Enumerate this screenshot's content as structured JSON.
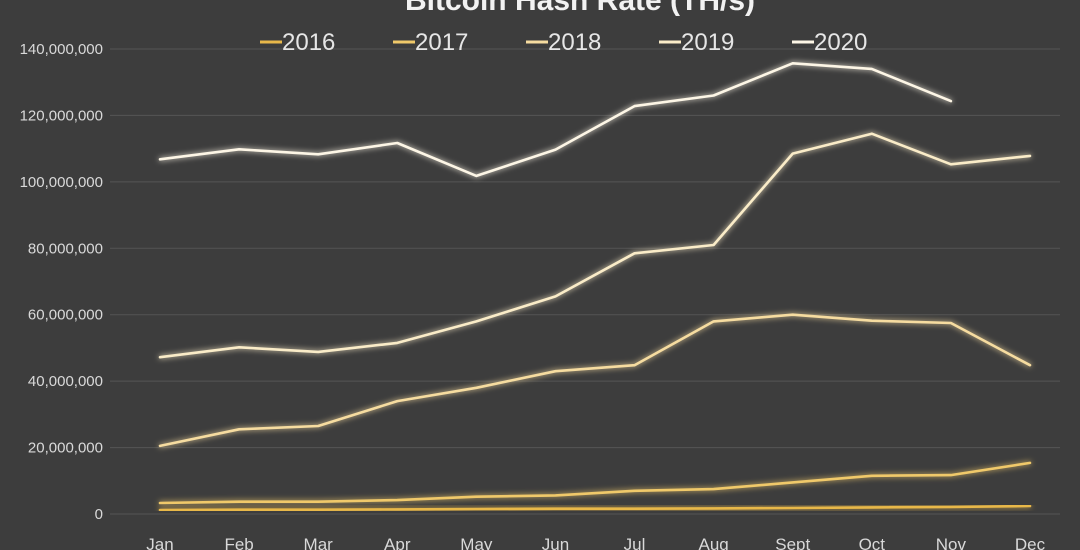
{
  "chart_data": {
    "type": "line",
    "title": "Bitcoin Hash Rate (TH/s)",
    "xlabel": "",
    "ylabel": "",
    "categories": [
      "Jan",
      "Feb",
      "Mar",
      "Apr",
      "May",
      "Jun",
      "Jul",
      "Aug",
      "Sept",
      "Oct",
      "Nov",
      "Dec"
    ],
    "yticks": [
      "0",
      "20,000,000",
      "40,000,000",
      "60,000,000",
      "80,000,000",
      "100,000,000",
      "120,000,000",
      "140,000,000"
    ],
    "ylim": [
      0,
      140000000
    ],
    "grid": true,
    "legend_position": "top",
    "series": [
      {
        "name": "2016",
        "color": "#e8b84a",
        "values": [
          1200000,
          1300000,
          1300000,
          1400000,
          1500000,
          1600000,
          1600000,
          1700000,
          1800000,
          2000000,
          2100000,
          2400000
        ]
      },
      {
        "name": "2017",
        "color": "#f0c96a",
        "values": [
          3300000,
          3700000,
          3700000,
          4200000,
          5200000,
          5600000,
          7000000,
          7500000,
          9500000,
          11500000,
          11700000,
          15400000
        ]
      },
      {
        "name": "2018",
        "color": "#f6dca0",
        "values": [
          20500000,
          25500000,
          26500000,
          34000000,
          38000000,
          43000000,
          44800000,
          58000000,
          60000000,
          58200000,
          57500000,
          44800000
        ]
      },
      {
        "name": "2019",
        "color": "#faecc8",
        "values": [
          47200000,
          50200000,
          48800000,
          51500000,
          58000000,
          65500000,
          78500000,
          81000000,
          108500000,
          114500000,
          105300000,
          107800000
        ]
      },
      {
        "name": "2020",
        "color": "#fdf6e6",
        "values": [
          106800000,
          109800000,
          108300000,
          111700000,
          101800000,
          109700000,
          122800000,
          126000000,
          135700000,
          134000000,
          124300000,
          null
        ]
      }
    ]
  }
}
